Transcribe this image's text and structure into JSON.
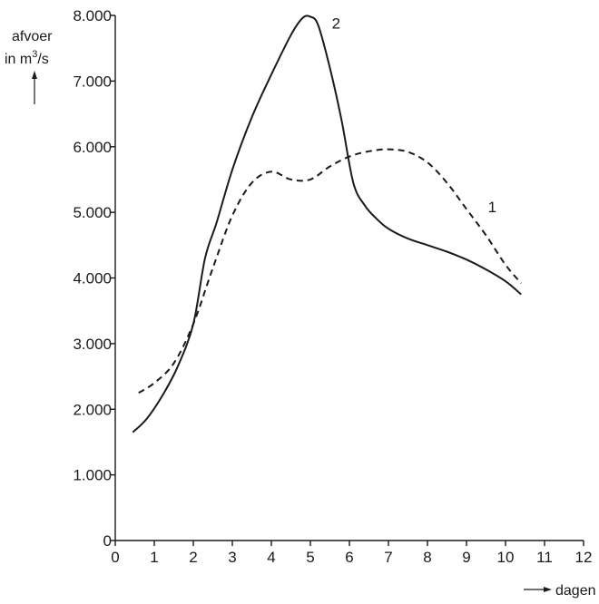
{
  "chart_data": {
    "type": "line",
    "title": "",
    "ylabel_line1": "afvoer",
    "ylabel_line2_prefix": "in m",
    "ylabel_line2_sup": "3",
    "ylabel_line2_suffix": "/s",
    "xlabel": "dagen",
    "xlim": [
      0,
      12
    ],
    "ylim": [
      0,
      8000
    ],
    "x_ticks": [
      0,
      1,
      2,
      3,
      4,
      5,
      6,
      7,
      8,
      9,
      10,
      11,
      12
    ],
    "x_tick_labels": [
      "0",
      "1",
      "2",
      "3",
      "4",
      "5",
      "6",
      "7",
      "8",
      "9",
      "10",
      "11",
      "12"
    ],
    "y_ticks": [
      0,
      1000,
      2000,
      3000,
      4000,
      5000,
      6000,
      7000,
      8000
    ],
    "y_tick_labels": [
      "0",
      "1.000",
      "2.000",
      "3.000",
      "4.000",
      "5.000",
      "6.000",
      "7.000",
      "8.000"
    ],
    "grid": false,
    "series": [
      {
        "name": "1",
        "style": "dashed",
        "x": [
          0.6,
          1.0,
          1.5,
          2.0,
          2.5,
          3.0,
          3.5,
          4.0,
          4.5,
          5.0,
          5.5,
          6.0,
          6.5,
          7.0,
          7.5,
          8.0,
          8.5,
          9.0,
          9.5,
          10.0,
          10.4
        ],
        "y": [
          2250,
          2400,
          2700,
          3300,
          4150,
          4950,
          5450,
          5620,
          5500,
          5500,
          5700,
          5850,
          5930,
          5960,
          5920,
          5760,
          5450,
          5050,
          4650,
          4200,
          3920
        ]
      },
      {
        "name": "2",
        "style": "solid",
        "x": [
          0.45,
          0.8,
          1.2,
          1.6,
          2.0,
          2.3,
          2.6,
          3.0,
          3.5,
          4.0,
          4.5,
          4.8,
          5.0,
          5.2,
          5.5,
          5.8,
          6.1,
          6.4,
          6.7,
          7.0,
          7.5,
          8.0,
          8.5,
          9.0,
          9.5,
          10.0,
          10.4
        ],
        "y": [
          1650,
          1850,
          2200,
          2650,
          3300,
          4300,
          4850,
          5650,
          6450,
          7100,
          7700,
          7960,
          7980,
          7850,
          7200,
          6400,
          5450,
          5100,
          4900,
          4750,
          4600,
          4500,
          4400,
          4280,
          4130,
          3950,
          3750
        ]
      }
    ]
  },
  "colors": {
    "ink": "#1a1a1a",
    "background": "#ffffff"
  }
}
